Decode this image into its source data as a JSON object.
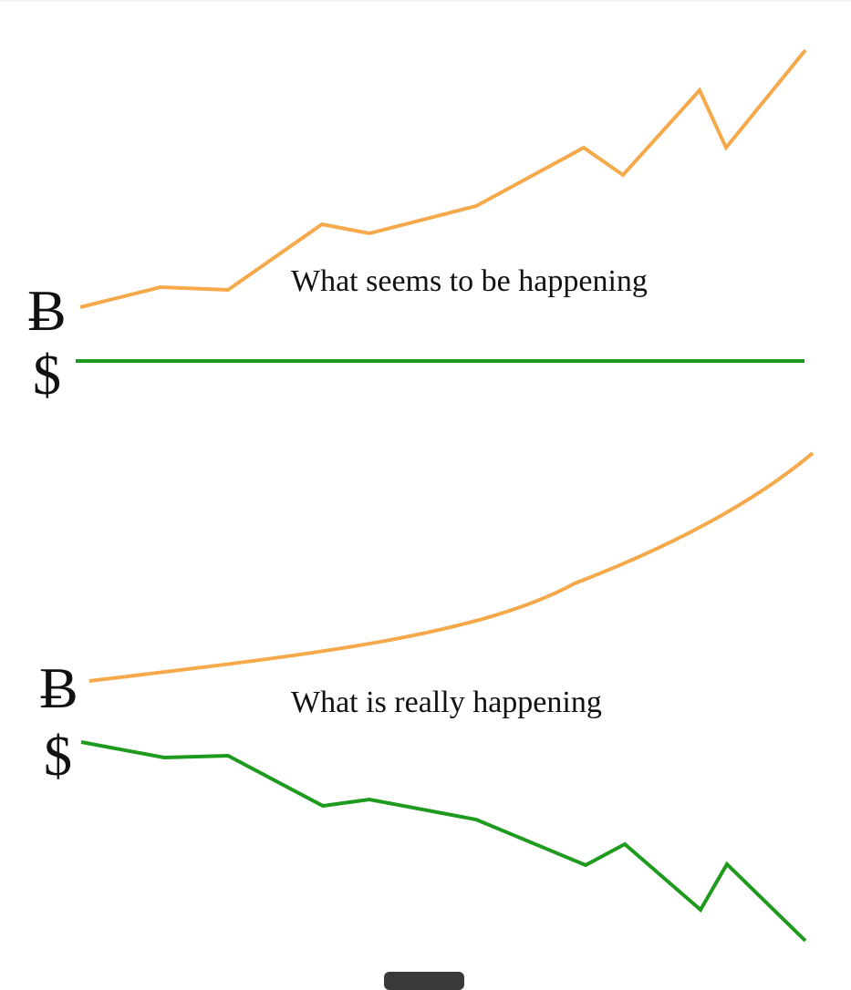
{
  "panels": [
    {
      "caption": "What seems to be happening",
      "bitcoin_symbol": "Ƀ",
      "dollar_symbol": "$",
      "bitcoin_color": "#f5a94a",
      "dollar_color": "#1e9a1e",
      "bitcoin_trend": "volatile rising",
      "dollar_trend": "flat"
    },
    {
      "caption": "What is really happening",
      "bitcoin_symbol": "Ƀ",
      "dollar_symbol": "$",
      "bitcoin_color": "#f5a94a",
      "dollar_color": "#1e9a1e",
      "bitcoin_trend": "smooth exponential rise",
      "dollar_trend": "volatile falling"
    }
  ],
  "bottom_control": {
    "icon": "drag-handle"
  }
}
